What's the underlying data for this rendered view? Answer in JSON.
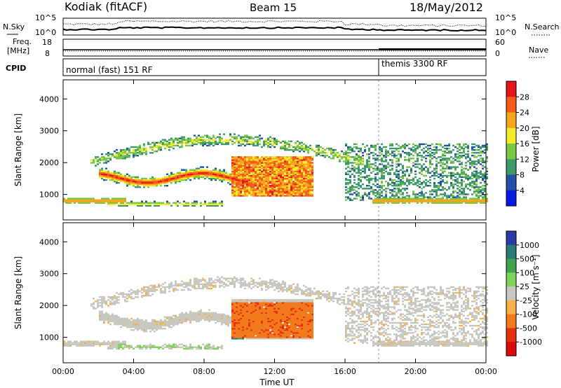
{
  "header": {
    "station": "Kodiak (fitACF)",
    "beam": "Beam 15",
    "date": "18/May/2012"
  },
  "top_panels": {
    "nsky": {
      "left_label": "N.Sky",
      "right_label": "N.Search",
      "left_ticks": [
        "10^5",
        "10^0"
      ],
      "right_ticks": [
        "10^5",
        "10^0"
      ]
    },
    "freq": {
      "left_label_1": "Freq.",
      "left_label_2": "[MHz]",
      "right_label": "Nave",
      "left_ticks": [
        "18",
        "8"
      ],
      "right_ticks": [
        "60",
        "0"
      ]
    },
    "cpid": {
      "label": "CPID",
      "segments": [
        "normal (fast) 151 RF",
        "themis 3300 RF"
      ]
    }
  },
  "chart_data": [
    {
      "type": "heatmap",
      "title": "",
      "ylabel": "Slant Range [km]",
      "xlabel": "",
      "ylim": [
        200,
        4600
      ],
      "yticks": [
        "1000",
        "2000",
        "3000",
        "4000"
      ],
      "colorbar": {
        "label": "Power [dB]",
        "ticks": [
          "28",
          "24",
          "20",
          "16",
          "12",
          "8",
          "4"
        ],
        "colors": [
          "#e8141a",
          "#f45a1c",
          "#f7a51f",
          "#f3ea2a",
          "#79c744",
          "#3f9a6a",
          "#234fa7",
          "#0a18e6"
        ]
      },
      "bands": [
        {
          "x": [
            2.0,
            5.0
          ],
          "y": [
            1300,
            1700
          ],
          "level": "high"
        },
        {
          "x": [
            5.0,
            10.5
          ],
          "y": [
            1300,
            1650
          ],
          "level": "high"
        },
        {
          "x": [
            9.5,
            14.0
          ],
          "y": [
            900,
            2100
          ],
          "level": "high"
        },
        {
          "x": [
            0.0,
            2.5
          ],
          "y": [
            700,
            850
          ],
          "level": "high"
        },
        {
          "x": [
            18.0,
            24.0
          ],
          "y": [
            750,
            850
          ],
          "level": "high"
        }
      ]
    },
    {
      "type": "heatmap",
      "title": "",
      "ylabel": "Slant Range [km]",
      "xlabel": "Time UT",
      "ylim": [
        200,
        4600
      ],
      "yticks": [
        "1000",
        "2000",
        "3000",
        "4000"
      ],
      "xticks": [
        "00:00",
        "04:00",
        "08:00",
        "12:00",
        "16:00",
        "20:00",
        "00:00"
      ],
      "colorbar": {
        "label": "Velocity [m s⁻¹]",
        "ticks": [
          "1000",
          "500",
          "100",
          "25",
          "-25",
          "-100",
          "-500",
          "-1000"
        ],
        "colors": [
          "#2b3aa8",
          "#2c7a74",
          "#3fa54b",
          "#7ed35a",
          "#c8c8c0",
          "#f7b04a",
          "#f07a1c",
          "#e83010",
          "#dc0a0a"
        ]
      },
      "regions": [
        {
          "x": [
            9.5,
            15.0
          ],
          "y": [
            1000,
            2000
          ],
          "velocity": "-100 to -500"
        },
        {
          "x": [
            9.0,
            10.0
          ],
          "y": [
            900,
            1200
          ],
          "velocity": "100"
        },
        {
          "x": [
            0.0,
            24.0
          ],
          "y": [
            600,
            3000
          ],
          "velocity": "-25 to 25"
        }
      ]
    }
  ]
}
